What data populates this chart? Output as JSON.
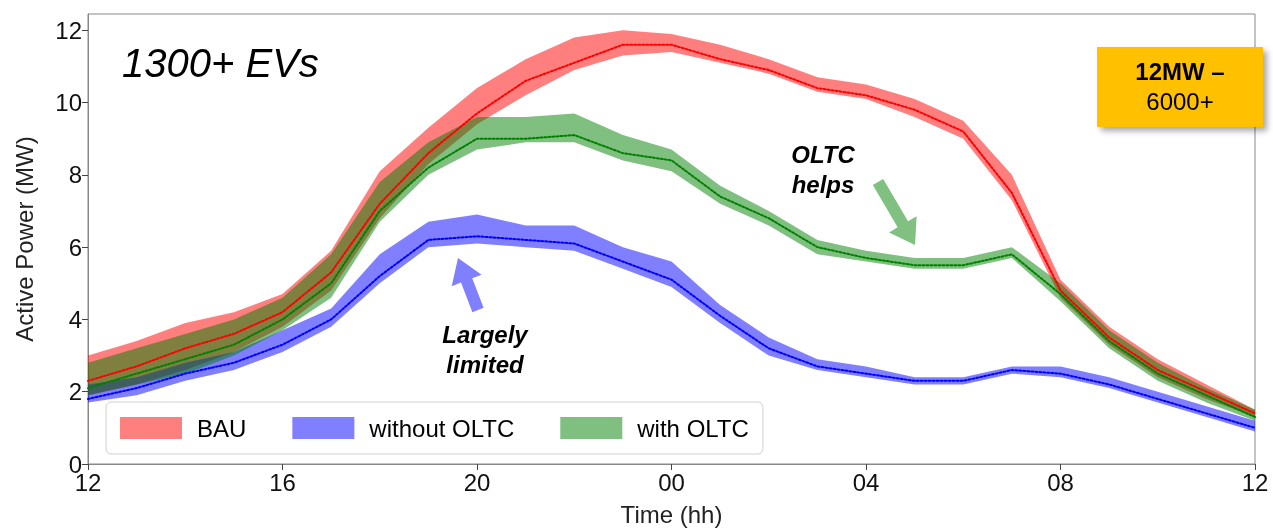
{
  "chart_data": {
    "type": "line",
    "xlabel": "Time (hh)",
    "ylabel": "Active Power (MW)",
    "x": [
      "--01-01T12:00",
      "--01-01T13:00",
      "--01-01T14:00",
      "--01-01T15:00",
      "--01-01T16:00",
      "--01-01T17:00",
      "--01-01T18:00",
      "--01-01T19:00",
      "--01-01T20:00",
      "--01-01T21:00",
      "--01-01T22:00",
      "--01-01T23:00",
      "--01-02T00:00",
      "--01-02T01:00",
      "--01-02T02:00",
      "--01-02T03:00",
      "--01-02T04:00",
      "--01-02T05:00",
      "--01-02T06:00",
      "--01-02T07:00",
      "--01-02T08:00",
      "--01-02T09:00",
      "--01-02T10:00",
      "--01-02T11:00",
      "--01-02T12:00"
    ],
    "xlim": [
      "--01-01T12:00",
      "--01-02T12:00"
    ],
    "xticks": [
      {
        "value": "--01-01T12:00",
        "label": "12"
      },
      {
        "value": "--01-01T16:00",
        "label": "16"
      },
      {
        "value": "--01-01T20:00",
        "label": "20"
      },
      {
        "value": "--01-02T00:00",
        "label": "00"
      },
      {
        "value": "--01-02T04:00",
        "label": "04"
      },
      {
        "value": "--01-02T08:00",
        "label": "08"
      },
      {
        "value": "--01-02T12:00",
        "label": "12"
      }
    ],
    "ylim": [
      0,
      12.45
    ],
    "yticks": [
      0,
      2,
      4,
      6,
      8,
      10,
      12
    ],
    "grid": false,
    "legend": "bottom left",
    "marker": "none",
    "line_style": "dotted",
    "series": [
      {
        "name": "BAU",
        "color": "#ff0000",
        "values": [
          2.3,
          2.7,
          3.2,
          3.6,
          4.2,
          5.3,
          7.2,
          8.6,
          9.7,
          10.6,
          11.1,
          11.6,
          11.6,
          11.2,
          10.9,
          10.4,
          10.2,
          9.8,
          9.2,
          7.5,
          4.8,
          3.5,
          2.6,
          2.0,
          1.4
        ],
        "lower": [
          1.9,
          2.2,
          2.6,
          3.1,
          3.8,
          4.8,
          6.8,
          8.3,
          9.4,
          10.2,
          10.9,
          11.3,
          11.4,
          11.1,
          10.8,
          10.3,
          10.1,
          9.6,
          9.0,
          7.3,
          4.6,
          3.3,
          2.4,
          1.8,
          1.3
        ],
        "upper": [
          3.0,
          3.4,
          3.9,
          4.2,
          4.7,
          5.9,
          8.1,
          9.3,
          10.4,
          11.2,
          11.8,
          12.0,
          11.9,
          11.6,
          11.2,
          10.7,
          10.5,
          10.1,
          9.5,
          8.0,
          5.1,
          3.8,
          2.9,
          2.2,
          1.5
        ]
      },
      {
        "name": "without OLTC",
        "color": "#0000ff",
        "values": [
          1.8,
          2.1,
          2.5,
          2.8,
          3.3,
          4.0,
          5.2,
          6.2,
          6.3,
          6.2,
          6.1,
          5.6,
          5.1,
          4.1,
          3.2,
          2.7,
          2.5,
          2.3,
          2.3,
          2.6,
          2.5,
          2.2,
          1.8,
          1.4,
          1.0
        ],
        "lower": [
          1.7,
          1.9,
          2.3,
          2.6,
          3.1,
          3.8,
          5.0,
          6.0,
          6.1,
          6.0,
          5.9,
          5.4,
          4.9,
          3.9,
          3.0,
          2.6,
          2.4,
          2.2,
          2.2,
          2.5,
          2.4,
          2.1,
          1.7,
          1.3,
          0.9
        ],
        "upper": [
          2.2,
          2.4,
          2.8,
          3.1,
          3.7,
          4.3,
          5.8,
          6.7,
          6.9,
          6.6,
          6.6,
          6.0,
          5.6,
          4.4,
          3.5,
          2.9,
          2.7,
          2.4,
          2.4,
          2.7,
          2.7,
          2.4,
          2.0,
          1.6,
          1.2
        ]
      },
      {
        "name": "with OLTC",
        "color": "#008000",
        "values": [
          2.1,
          2.5,
          2.9,
          3.3,
          4.0,
          5.0,
          7.0,
          8.2,
          9.0,
          9.0,
          9.1,
          8.6,
          8.4,
          7.4,
          6.8,
          6.0,
          5.7,
          5.5,
          5.5,
          5.8,
          4.7,
          3.4,
          2.5,
          1.9,
          1.3
        ],
        "lower": [
          1.9,
          2.2,
          2.5,
          3.0,
          3.7,
          4.6,
          6.7,
          8.0,
          8.7,
          8.9,
          8.9,
          8.4,
          8.1,
          7.2,
          6.6,
          5.8,
          5.6,
          5.4,
          5.4,
          5.7,
          4.5,
          3.2,
          2.3,
          1.7,
          1.2
        ],
        "upper": [
          2.8,
          3.2,
          3.6,
          4.0,
          4.6,
          5.8,
          7.8,
          8.9,
          9.6,
          9.6,
          9.7,
          9.1,
          8.7,
          7.7,
          7.0,
          6.2,
          5.9,
          5.7,
          5.7,
          6.0,
          5.0,
          3.7,
          2.8,
          2.1,
          1.5
        ]
      }
    ],
    "annotations": [
      "1300+ EVs",
      "Largely limited",
      "OLTC helps",
      "12MW –",
      "6000+"
    ]
  }
}
